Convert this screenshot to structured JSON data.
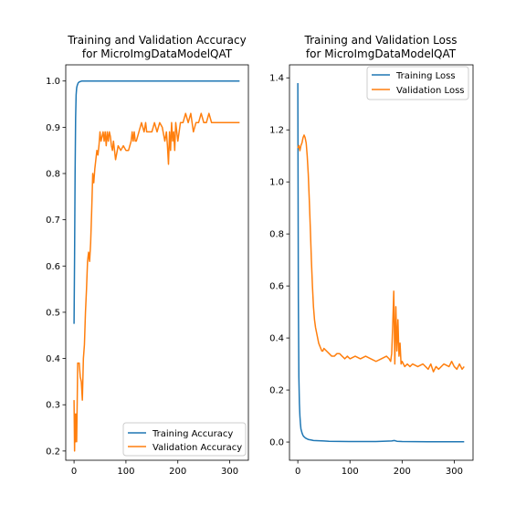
{
  "chart_data": [
    {
      "type": "line",
      "title_lines": [
        "Training and Validation Accuracy",
        "for MicroImgDataModelQAT"
      ],
      "xlabel": "",
      "ylabel": "",
      "xlim": [
        -16,
        336
      ],
      "ylim": [
        0.18,
        1.035
      ],
      "xticks": [
        0,
        100,
        200,
        300
      ],
      "yticks": [
        0.2,
        0.3,
        0.4,
        0.5,
        0.6,
        0.7,
        0.8,
        0.9,
        1.0
      ],
      "ytick_labels": [
        "0.2",
        "0.3",
        "0.4",
        "0.5",
        "0.6",
        "0.7",
        "0.8",
        "0.9",
        "1.0"
      ],
      "legend_position": "lower-right",
      "series": [
        {
          "name": "Training Accuracy",
          "color": "#1f77b4",
          "x": [
            0,
            1,
            2,
            3,
            4,
            5,
            6,
            8,
            10,
            15,
            20,
            50,
            100,
            200,
            319
          ],
          "y": [
            0.475,
            0.62,
            0.8,
            0.92,
            0.97,
            0.985,
            0.99,
            0.996,
            0.998,
            1.0,
            1.0,
            1.0,
            1.0,
            1.0,
            1.0
          ]
        },
        {
          "name": "Validation Accuracy",
          "color": "#ff7f0e",
          "x": [
            0,
            1,
            2,
            3,
            4,
            5,
            6,
            7,
            8,
            9,
            10,
            12,
            14,
            16,
            18,
            20,
            22,
            24,
            26,
            28,
            30,
            32,
            34,
            36,
            38,
            40,
            42,
            44,
            46,
            48,
            50,
            52,
            54,
            56,
            58,
            60,
            62,
            64,
            66,
            68,
            70,
            72,
            74,
            76,
            78,
            80,
            85,
            90,
            95,
            100,
            105,
            110,
            112,
            114,
            116,
            118,
            120,
            125,
            130,
            135,
            138,
            140,
            145,
            150,
            155,
            160,
            165,
            170,
            175,
            178,
            180,
            182,
            184,
            186,
            188,
            190,
            192,
            194,
            196,
            198,
            200,
            205,
            210,
            215,
            220,
            225,
            230,
            235,
            240,
            245,
            250,
            255,
            260,
            265,
            270,
            275,
            280,
            285,
            290,
            295,
            300,
            310,
            319
          ],
          "y": [
            0.31,
            0.2,
            0.28,
            0.22,
            0.28,
            0.22,
            0.3,
            0.39,
            0.39,
            0.39,
            0.39,
            0.36,
            0.35,
            0.31,
            0.4,
            0.43,
            0.5,
            0.55,
            0.61,
            0.63,
            0.61,
            0.65,
            0.72,
            0.8,
            0.78,
            0.81,
            0.83,
            0.85,
            0.84,
            0.86,
            0.89,
            0.87,
            0.88,
            0.89,
            0.87,
            0.89,
            0.86,
            0.89,
            0.87,
            0.89,
            0.88,
            0.86,
            0.85,
            0.87,
            0.85,
            0.83,
            0.86,
            0.85,
            0.86,
            0.85,
            0.85,
            0.87,
            0.89,
            0.87,
            0.89,
            0.87,
            0.87,
            0.89,
            0.91,
            0.89,
            0.91,
            0.89,
            0.89,
            0.89,
            0.91,
            0.89,
            0.91,
            0.9,
            0.87,
            0.89,
            0.86,
            0.82,
            0.89,
            0.85,
            0.91,
            0.87,
            0.89,
            0.85,
            0.91,
            0.89,
            0.87,
            0.91,
            0.91,
            0.93,
            0.91,
            0.93,
            0.89,
            0.91,
            0.91,
            0.93,
            0.91,
            0.91,
            0.93,
            0.91,
            0.91,
            0.91,
            0.91,
            0.91,
            0.91,
            0.91,
            0.91,
            0.91,
            0.91
          ]
        }
      ]
    },
    {
      "type": "line",
      "title_lines": [
        "Training and Validation Loss",
        "for MicroImgDataModelQAT"
      ],
      "xlabel": "",
      "ylabel": "",
      "xlim": [
        -16,
        336
      ],
      "ylim": [
        -0.07,
        1.45
      ],
      "xticks": [
        0,
        100,
        200,
        300
      ],
      "yticks": [
        0.0,
        0.2,
        0.4,
        0.6,
        0.8,
        1.0,
        1.2,
        1.4
      ],
      "ytick_labels": [
        "0.0",
        "0.2",
        "0.4",
        "0.6",
        "0.8",
        "1.0",
        "1.2",
        "1.4"
      ],
      "legend_position": "top-right",
      "series": [
        {
          "name": "Training Loss",
          "color": "#1f77b4",
          "x": [
            0,
            1,
            2,
            3,
            4,
            5,
            6,
            8,
            10,
            12,
            15,
            20,
            25,
            30,
            40,
            50,
            60,
            100,
            150,
            180,
            185,
            190,
            200,
            250,
            319
          ],
          "y": [
            1.38,
            0.55,
            0.25,
            0.15,
            0.1,
            0.07,
            0.05,
            0.035,
            0.025,
            0.02,
            0.015,
            0.01,
            0.008,
            0.006,
            0.005,
            0.004,
            0.003,
            0.002,
            0.002,
            0.004,
            0.006,
            0.003,
            0.002,
            0.001,
            0.001
          ]
        },
        {
          "name": "Validation Loss",
          "color": "#ff7f0e",
          "x": [
            0,
            2,
            4,
            6,
            8,
            10,
            12,
            14,
            16,
            18,
            20,
            22,
            24,
            26,
            28,
            30,
            32,
            34,
            36,
            38,
            40,
            42,
            44,
            46,
            48,
            50,
            55,
            60,
            65,
            70,
            75,
            80,
            85,
            90,
            95,
            100,
            110,
            120,
            130,
            140,
            150,
            160,
            170,
            175,
            178,
            180,
            182,
            184,
            186,
            188,
            190,
            192,
            194,
            196,
            198,
            200,
            205,
            210,
            215,
            220,
            230,
            240,
            250,
            255,
            260,
            265,
            270,
            280,
            290,
            295,
            300,
            305,
            310,
            315,
            319
          ],
          "y": [
            1.13,
            1.14,
            1.12,
            1.14,
            1.15,
            1.17,
            1.18,
            1.17,
            1.15,
            1.1,
            1.03,
            0.93,
            0.82,
            0.7,
            0.6,
            0.52,
            0.47,
            0.44,
            0.42,
            0.4,
            0.38,
            0.37,
            0.36,
            0.35,
            0.35,
            0.36,
            0.35,
            0.34,
            0.33,
            0.33,
            0.34,
            0.34,
            0.33,
            0.32,
            0.33,
            0.32,
            0.33,
            0.32,
            0.33,
            0.32,
            0.31,
            0.32,
            0.33,
            0.32,
            0.31,
            0.34,
            0.45,
            0.58,
            0.3,
            0.52,
            0.35,
            0.47,
            0.33,
            0.38,
            0.3,
            0.31,
            0.29,
            0.3,
            0.29,
            0.3,
            0.29,
            0.3,
            0.28,
            0.3,
            0.27,
            0.29,
            0.28,
            0.3,
            0.29,
            0.31,
            0.29,
            0.28,
            0.3,
            0.28,
            0.29
          ]
        }
      ]
    }
  ]
}
